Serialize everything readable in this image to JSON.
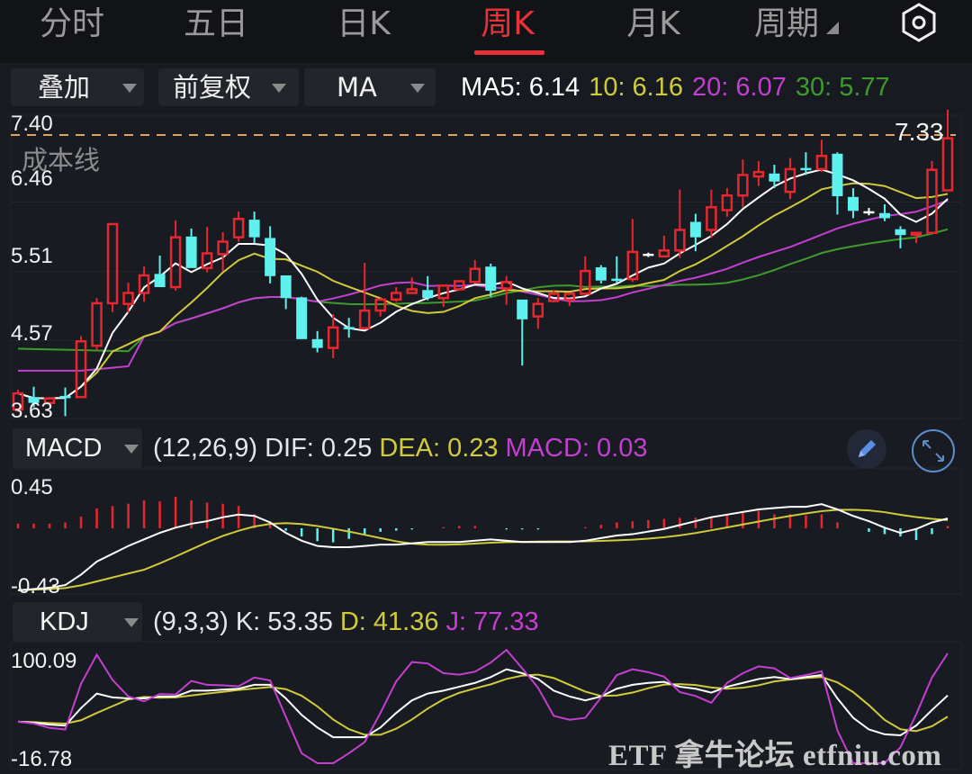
{
  "tabs": [
    {
      "label": "分时",
      "active": false
    },
    {
      "label": "五日",
      "active": false
    },
    {
      "label": "日K",
      "active": false
    },
    {
      "label": "周K",
      "active": true
    },
    {
      "label": "月K",
      "active": false
    },
    {
      "label": "周期",
      "active": false
    }
  ],
  "settings_icon": "settings-hex-icon",
  "toolbar": {
    "overlay_label": "叠加",
    "adjust_label": "前复权",
    "indicator_label": "MA",
    "ma": {
      "ma5": "MA5: 6.14",
      "ma10": "10: 6.16",
      "ma20": "20: 6.07",
      "ma30": "30: 5.77"
    }
  },
  "colors": {
    "up": "#e8262e",
    "down": "#5ff1ee",
    "ma5": "#ffffff",
    "ma10": "#cfcb3a",
    "ma20": "#c43fd0",
    "ma30": "#3f9a2c",
    "cost_line": "#e6a25a",
    "active_tab": "#e8323a",
    "background": "#191b22"
  },
  "main_chart": {
    "y_labels": [
      "7.40",
      "6.46",
      "5.51",
      "4.57",
      "3.63"
    ],
    "last_price_label": "7.33",
    "cost_line_label": "成本线"
  },
  "macd": {
    "indicator_label": "MACD",
    "params": "(12,26,9)",
    "dif": "DIF: 0.25",
    "dea": "DEA: 0.23",
    "macd": "MACD: 0.03",
    "y_labels": [
      "0.45",
      "-0.43"
    ],
    "edit_icon": "pencil-icon",
    "expand_icon": "expand-icon"
  },
  "kdj": {
    "indicator_label": "KDJ",
    "params": "(9,3,3)",
    "k": "K: 53.35",
    "d": "D: 41.36",
    "j": "J: 77.33",
    "y_labels": [
      "100.09",
      "-16.78"
    ]
  },
  "watermark": "ETF 拿牛论坛 etfniu.com",
  "chart_data": {
    "type": "candlestick",
    "title": "周K",
    "price_axis": {
      "max": 7.4,
      "min": 3.63,
      "ticks": [
        7.4,
        6.46,
        5.51,
        4.57,
        3.63
      ]
    },
    "last_price": 7.33,
    "ma": {
      "MA5": 6.14,
      "MA10": 6.16,
      "MA20": 6.07,
      "MA30": 5.77
    },
    "candles_ohlc": [
      [
        3.63,
        3.85,
        3.9,
        3.6
      ],
      [
        3.8,
        3.72,
        3.94,
        3.66
      ],
      [
        3.72,
        3.78,
        3.8,
        3.7
      ],
      [
        3.8,
        3.8,
        3.93,
        3.54
      ],
      [
        3.8,
        4.56,
        4.63,
        3.8
      ],
      [
        4.5,
        5.08,
        5.15,
        4.44
      ],
      [
        5.08,
        6.16,
        6.16,
        4.96
      ],
      [
        5.07,
        5.22,
        5.36,
        4.95
      ],
      [
        5.22,
        5.46,
        5.58,
        5.1
      ],
      [
        5.48,
        5.3,
        5.73,
        5.3
      ],
      [
        5.3,
        5.98,
        6.21,
        5.25
      ],
      [
        5.99,
        5.56,
        6.1,
        5.56
      ],
      [
        5.56,
        5.76,
        6.12,
        5.5
      ],
      [
        5.75,
        5.92,
        6.05,
        5.52
      ],
      [
        5.98,
        6.23,
        6.33,
        5.92
      ],
      [
        6.22,
        5.98,
        6.33,
        5.9
      ],
      [
        5.97,
        5.45,
        6.13,
        5.35
      ],
      [
        5.46,
        5.15,
        5.46,
        5.0
      ],
      [
        5.16,
        4.59,
        5.17,
        4.59
      ],
      [
        4.59,
        4.47,
        4.7,
        4.41
      ],
      [
        4.47,
        4.75,
        4.93,
        4.33
      ],
      [
        4.75,
        4.74,
        4.88,
        4.61
      ],
      [
        4.74,
        4.98,
        5.63,
        4.74
      ],
      [
        4.98,
        5.13,
        5.15,
        4.9
      ],
      [
        5.13,
        5.22,
        5.3,
        5.1
      ],
      [
        5.22,
        5.27,
        5.43,
        5.22
      ],
      [
        5.26,
        5.15,
        5.45,
        5.12
      ],
      [
        5.15,
        5.32,
        5.33,
        5.03
      ],
      [
        5.27,
        5.38,
        5.38,
        5.25
      ],
      [
        5.37,
        5.55,
        5.67,
        5.35
      ],
      [
        5.58,
        5.25,
        5.62,
        5.17
      ],
      [
        5.28,
        5.37,
        5.45,
        5.06
      ],
      [
        5.13,
        4.86,
        5.13,
        4.23
      ],
      [
        4.9,
        5.07,
        5.15,
        4.73
      ],
      [
        5.11,
        5.21,
        5.26,
        5.09
      ],
      [
        5.13,
        5.21,
        5.21,
        5.04
      ],
      [
        5.21,
        5.52,
        5.72,
        5.2
      ],
      [
        5.57,
        5.39,
        5.6,
        5.35
      ],
      [
        5.41,
        5.4,
        5.72,
        5.35
      ],
      [
        5.41,
        5.78,
        6.23,
        5.37
      ],
      [
        5.74,
        5.74,
        5.77,
        5.71
      ],
      [
        5.72,
        5.8,
        6.0,
        5.71
      ],
      [
        5.8,
        6.08,
        6.63,
        5.7
      ],
      [
        6.19,
        5.98,
        6.3,
        5.79
      ],
      [
        6.08,
        6.39,
        6.63,
        5.97
      ],
      [
        6.35,
        6.55,
        6.65,
        6.26
      ],
      [
        6.55,
        6.83,
        7.04,
        6.39
      ],
      [
        6.81,
        6.87,
        7.02,
        6.68
      ],
      [
        6.85,
        6.74,
        6.97,
        6.65
      ],
      [
        6.6,
        6.91,
        7.06,
        6.5
      ],
      [
        6.91,
        6.91,
        7.14,
        6.83
      ],
      [
        6.91,
        7.09,
        7.31,
        6.87
      ],
      [
        7.12,
        6.54,
        7.14,
        6.29
      ],
      [
        6.53,
        6.34,
        6.65,
        6.24
      ],
      [
        6.32,
        6.32,
        6.38,
        6.28
      ],
      [
        6.31,
        6.24,
        6.43,
        6.2
      ],
      [
        6.09,
        6.01,
        6.13,
        5.83
      ],
      [
        6.02,
        6.04,
        6.04,
        5.9
      ],
      [
        6.04,
        6.9,
        7.02,
        6.04
      ],
      [
        6.62,
        7.33,
        7.72,
        6.62
      ]
    ]
  }
}
